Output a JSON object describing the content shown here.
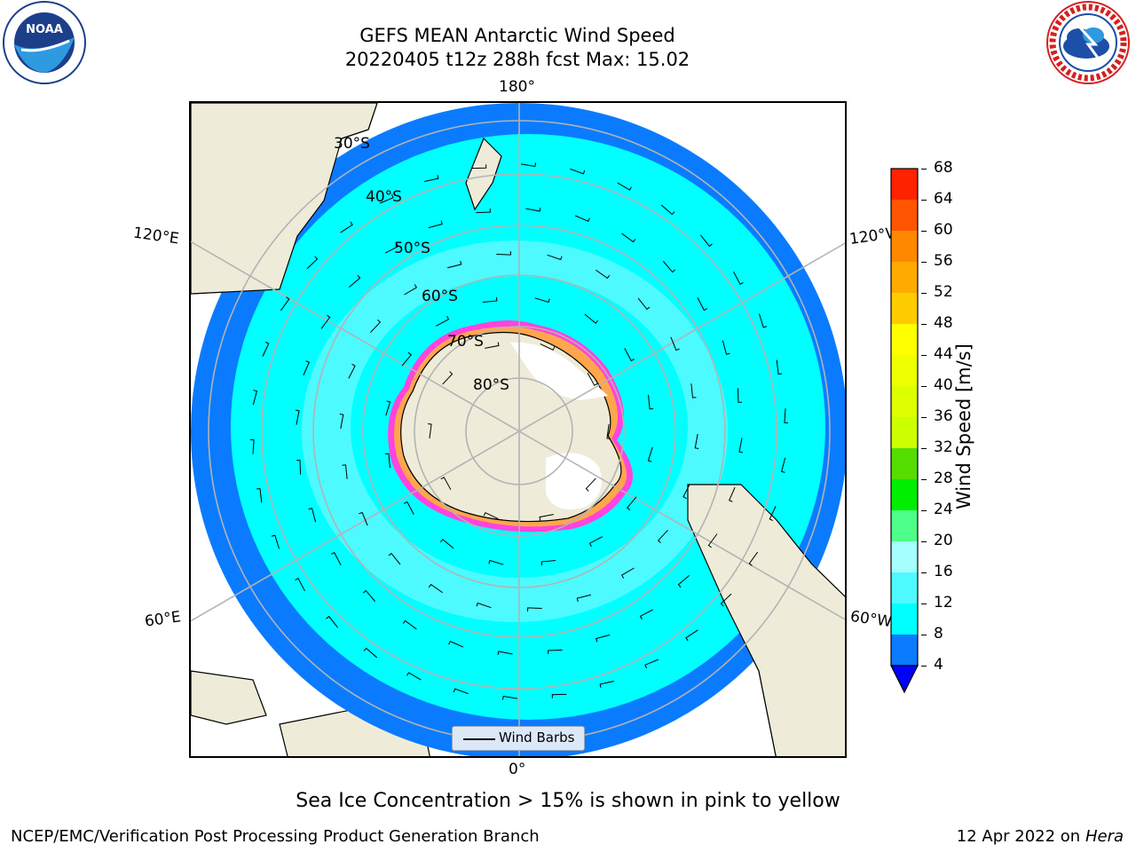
{
  "header": {
    "title_line1": "GEFS MEAN Antarctic Wind Speed",
    "title_line2": "20220405 t12z 288h fcst   Max: 15.02"
  },
  "logos": {
    "left": {
      "icon": "noaa-logo",
      "text": "NOAA"
    },
    "right": {
      "icon": "national-weather-service-logo",
      "text": "NATIONAL WEATHER SERVICE"
    }
  },
  "map": {
    "projection": "south-polar-stereographic",
    "longitude_labels": {
      "top": "180°",
      "bottom": "0°",
      "upper_left": "120°E",
      "upper_right": "120°W",
      "lower_left": "60°E",
      "lower_right": "60°W"
    },
    "latitude_labels": [
      "30°S",
      "40°S",
      "50°S",
      "60°S",
      "70°S",
      "80°S"
    ],
    "legend": {
      "label": "Wind Barbs"
    },
    "colors": {
      "land": "#eeecd9",
      "ice_shelf": "#ffffff",
      "ocean_4_8": "#0a7bff",
      "ocean_8_12": "#00ffff",
      "ocean_12_16": "#4dfaff",
      "sea_ice_edge": "#ff44dd",
      "sea_ice_inner": "#ffa64d"
    }
  },
  "colorbar": {
    "label": "Wind Speed [m/s]",
    "ticks": [
      "4",
      "8",
      "12",
      "16",
      "20",
      "24",
      "28",
      "32",
      "36",
      "40",
      "44",
      "48",
      "52",
      "56",
      "60",
      "64",
      "68"
    ],
    "colors": [
      "#0a7bff",
      "#00ffff",
      "#4dfaff",
      "#a6ffff",
      "#4dff88",
      "#00ee00",
      "#55dd00",
      "#ccff00",
      "#ddff00",
      "#eeff00",
      "#ffff00",
      "#ffcc00",
      "#ffaa00",
      "#ff8800",
      "#ff5500",
      "#ff2200"
    ],
    "extend_color": "#0000ff"
  },
  "footer": {
    "note": "Sea Ice Concentration > 15% is shown in pink to yellow",
    "left": "NCEP/EMC/Verification Post Processing Product Generation Branch",
    "right_date": "12 Apr 2022 on",
    "right_machine": "Hera"
  }
}
